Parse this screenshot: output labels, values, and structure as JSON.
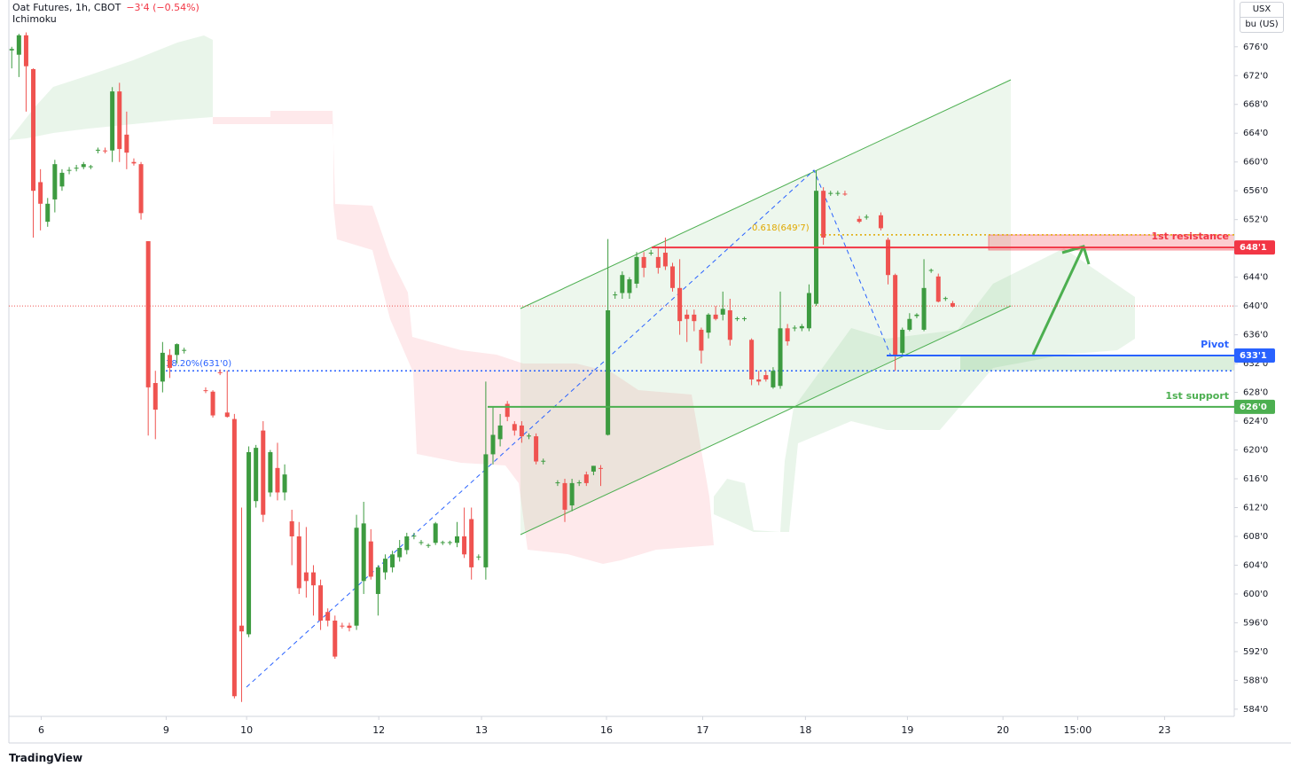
{
  "header": {
    "symbol": "Oat Futures, 1h, CBOT",
    "change": "−3'4 (−0.54%)",
    "indicator": "Ichimoku"
  },
  "currency": "USX",
  "unit": "bu (US)",
  "branding": "TradingView",
  "chart_data": {
    "type": "candlestick",
    "up_color": "#3d9b40",
    "down_color": "#ef5350",
    "xlim": [
      -0.4,
      170.2
    ],
    "ylim": [
      583,
      682.5
    ],
    "xticks": [
      {
        "value": 4.1,
        "label": "6"
      },
      {
        "value": 21.5,
        "label": "9"
      },
      {
        "value": 32.7,
        "label": "10"
      },
      {
        "value": 51.1,
        "label": "12"
      },
      {
        "value": 65.4,
        "label": "13"
      },
      {
        "value": 82.8,
        "label": "16"
      },
      {
        "value": 96.2,
        "label": "17"
      },
      {
        "value": 110.5,
        "label": "18"
      },
      {
        "value": 124.7,
        "label": "19"
      },
      {
        "value": 138,
        "label": "20"
      },
      {
        "value": 148.4,
        "label": "15:00"
      },
      {
        "value": 160.5,
        "label": "23"
      }
    ],
    "yticks": [
      {
        "value": 584,
        "label": "584'0"
      },
      {
        "value": 588,
        "label": "588'0"
      },
      {
        "value": 592,
        "label": "592'0"
      },
      {
        "value": 596,
        "label": "596'0"
      },
      {
        "value": 600,
        "label": "600'0"
      },
      {
        "value": 604,
        "label": "604'0"
      },
      {
        "value": 608,
        "label": "608'0"
      },
      {
        "value": 612,
        "label": "612'0"
      },
      {
        "value": 616,
        "label": "616'0"
      },
      {
        "value": 620,
        "label": "620'0"
      },
      {
        "value": 624,
        "label": "624'0"
      },
      {
        "value": 628,
        "label": "628'0"
      },
      {
        "value": 632,
        "label": "632'0"
      },
      {
        "value": 636,
        "label": "636'0"
      },
      {
        "value": 640,
        "label": "640'0"
      },
      {
        "value": 644,
        "label": "644'0"
      },
      {
        "value": 648,
        "label": "648'0"
      },
      {
        "value": 652,
        "label": "652'0"
      },
      {
        "value": 656,
        "label": "656'0"
      },
      {
        "value": 660,
        "label": "660'0"
      },
      {
        "value": 664,
        "label": "664'0"
      },
      {
        "value": 668,
        "label": "668'0"
      },
      {
        "value": 672,
        "label": "672'0"
      },
      {
        "value": 676,
        "label": "676'0"
      }
    ],
    "last_price": 640,
    "levels": [
      {
        "name": "1st resistance",
        "value": 648.125,
        "label": "648'1",
        "color": "#f23645"
      },
      {
        "name": "Pivot",
        "value": 633.125,
        "label": "633'1",
        "color": "#2962ff"
      },
      {
        "name": "1st support",
        "value": 626,
        "label": "626'0",
        "color": "#4caf50"
      }
    ],
    "fib_levels": [
      {
        "value": 631,
        "label": "38.20%(631'0)",
        "color": "#2962ff"
      },
      {
        "value": 649.875,
        "label": "0.618(649'7)",
        "color": "#e0a800"
      }
    ],
    "candles": [
      {
        "x": 0,
        "open": 675.5,
        "high": 676,
        "low": 673,
        "close": 675.7
      },
      {
        "x": 1,
        "open": 674.9,
        "high": 677.8,
        "low": 671.8,
        "close": 677.6
      },
      {
        "x": 2,
        "open": 677.6,
        "high": 678,
        "low": 667,
        "close": 673.3
      },
      {
        "x": 3,
        "open": 672.9,
        "high": 673,
        "low": 649.5,
        "close": 656
      },
      {
        "x": 4,
        "open": 657.2,
        "high": 659,
        "low": 650.5,
        "close": 654.2
      },
      {
        "x": 5,
        "open": 651.7,
        "high": 655,
        "low": 651,
        "close": 654.2
      },
      {
        "x": 6,
        "open": 654.8,
        "high": 660.3,
        "low": 653,
        "close": 659.7
      },
      {
        "x": 7,
        "open": 656.6,
        "high": 659,
        "low": 656,
        "close": 658.5
      },
      {
        "x": 8,
        "open": 658.8,
        "high": 659.3,
        "low": 658.3,
        "close": 658.9
      },
      {
        "x": 9,
        "open": 659.1,
        "high": 659.6,
        "low": 658.7,
        "close": 659.2
      },
      {
        "x": 10,
        "open": 659.3,
        "high": 660,
        "low": 659,
        "close": 659.7
      },
      {
        "x": 11,
        "open": 659.3,
        "high": 659.6,
        "low": 659,
        "close": 659.4
      },
      {
        "x": 12,
        "open": 661.6,
        "high": 662,
        "low": 661.2,
        "close": 661.7
      },
      {
        "x": 13,
        "open": 661.6,
        "high": 662,
        "low": 661.2,
        "close": 661.5
      },
      {
        "x": 14,
        "open": 661.6,
        "high": 670.4,
        "low": 660,
        "close": 669.8
      },
      {
        "x": 15,
        "open": 669.8,
        "high": 671,
        "low": 660,
        "close": 661.8
      },
      {
        "x": 16,
        "open": 663.8,
        "high": 667,
        "low": 659,
        "close": 661.3
      },
      {
        "x": 17,
        "open": 660,
        "high": 660.5,
        "low": 659.5,
        "close": 659.8
      },
      {
        "x": 18,
        "open": 659.7,
        "high": 660,
        "low": 652,
        "close": 652.9
      },
      {
        "x": 19,
        "open": 649,
        "high": 649,
        "low": 622,
        "close": 628.7
      },
      {
        "x": 20,
        "open": 629.3,
        "high": 631,
        "low": 621.5,
        "close": 625.6
      },
      {
        "x": 21,
        "open": 629.5,
        "high": 635,
        "low": 628,
        "close": 633.5
      },
      {
        "x": 22,
        "open": 633.2,
        "high": 634,
        "low": 630,
        "close": 631.4
      },
      {
        "x": 23,
        "open": 633.2,
        "high": 634.8,
        "low": 632,
        "close": 634.7
      },
      {
        "x": 24,
        "open": 633.8,
        "high": 634.2,
        "low": 633.4,
        "close": 633.9
      },
      {
        "x": 27,
        "open": 628.3,
        "high": 628.7,
        "low": 627.9,
        "close": 628.2
      },
      {
        "x": 28,
        "open": 628.1,
        "high": 628.3,
        "low": 624.5,
        "close": 624.8
      },
      {
        "x": 29,
        "open": 630.8,
        "high": 631.2,
        "low": 630.4,
        "close": 630.7
      },
      {
        "x": 30,
        "open": 625.2,
        "high": 631,
        "low": 624.5,
        "close": 624.6
      },
      {
        "x": 31,
        "open": 624.3,
        "high": 625,
        "low": 585.5,
        "close": 585.8
      },
      {
        "x": 32,
        "open": 595.6,
        "high": 612,
        "low": 585,
        "close": 594.8
      },
      {
        "x": 33,
        "open": 594.4,
        "high": 620.5,
        "low": 594,
        "close": 619.7
      },
      {
        "x": 34,
        "open": 612.9,
        "high": 620.7,
        "low": 612,
        "close": 620.3
      },
      {
        "x": 35,
        "open": 622.7,
        "high": 624,
        "low": 610,
        "close": 611
      },
      {
        "x": 36,
        "open": 614.1,
        "high": 620,
        "low": 613.5,
        "close": 619.7
      },
      {
        "x": 37,
        "open": 617.5,
        "high": 621,
        "low": 613,
        "close": 614.1
      },
      {
        "x": 38,
        "open": 614.1,
        "high": 618,
        "low": 613,
        "close": 616.6
      },
      {
        "x": 39,
        "open": 610.1,
        "high": 611.7,
        "low": 604,
        "close": 608
      },
      {
        "x": 40,
        "open": 608,
        "high": 610,
        "low": 600,
        "close": 600.8
      },
      {
        "x": 41,
        "open": 603,
        "high": 609.3,
        "low": 599.5,
        "close": 601.8
      },
      {
        "x": 42,
        "open": 603,
        "high": 604,
        "low": 597,
        "close": 601.2
      },
      {
        "x": 43,
        "open": 601.2,
        "high": 602,
        "low": 595,
        "close": 596.3
      },
      {
        "x": 44,
        "open": 597.5,
        "high": 598,
        "low": 595.5,
        "close": 596.3
      },
      {
        "x": 45,
        "open": 596.3,
        "high": 597,
        "low": 591,
        "close": 591.3
      },
      {
        "x": 46,
        "open": 595.6,
        "high": 596,
        "low": 595.2,
        "close": 595.5
      },
      {
        "x": 47,
        "open": 595.6,
        "high": 596,
        "low": 594.8,
        "close": 595.3
      },
      {
        "x": 48,
        "open": 595.6,
        "high": 611,
        "low": 595,
        "close": 609.2
      },
      {
        "x": 49,
        "open": 601.8,
        "high": 612.8,
        "low": 600,
        "close": 609.8
      },
      {
        "x": 50,
        "open": 607.3,
        "high": 609,
        "low": 602,
        "close": 602.4
      },
      {
        "x": 51,
        "open": 600,
        "high": 604,
        "low": 597,
        "close": 603.7
      },
      {
        "x": 52,
        "open": 603,
        "high": 605.5,
        "low": 602,
        "close": 604.9
      },
      {
        "x": 53,
        "open": 603.7,
        "high": 606,
        "low": 603,
        "close": 605.5
      },
      {
        "x": 54,
        "open": 605.1,
        "high": 607.5,
        "low": 604.5,
        "close": 606.4
      },
      {
        "x": 55,
        "open": 606.1,
        "high": 608.5,
        "low": 605.5,
        "close": 608
      },
      {
        "x": 56,
        "open": 608,
        "high": 608.5,
        "low": 607.6,
        "close": 608.1
      },
      {
        "x": 57,
        "open": 607.1,
        "high": 607.5,
        "low": 606.8,
        "close": 607.2
      },
      {
        "x": 58,
        "open": 606.7,
        "high": 607,
        "low": 606.4,
        "close": 606.8
      },
      {
        "x": 59,
        "open": 607.1,
        "high": 610,
        "low": 606.8,
        "close": 609.8
      },
      {
        "x": 60,
        "open": 607.1,
        "high": 607.4,
        "low": 606.8,
        "close": 607.2
      },
      {
        "x": 61,
        "open": 607.1,
        "high": 607.4,
        "low": 606.8,
        "close": 607.2
      },
      {
        "x": 62,
        "open": 607.1,
        "high": 610,
        "low": 606.5,
        "close": 608
      },
      {
        "x": 63,
        "open": 608,
        "high": 612,
        "low": 605,
        "close": 605.5
      },
      {
        "x": 64,
        "open": 610.4,
        "high": 612,
        "low": 602,
        "close": 603.7
      },
      {
        "x": 65,
        "open": 605.1,
        "high": 605.5,
        "low": 604.7,
        "close": 605.2
      },
      {
        "x": 66,
        "open": 603.7,
        "high": 629.5,
        "low": 602,
        "close": 619.4
      },
      {
        "x": 67,
        "open": 619.4,
        "high": 626,
        "low": 618,
        "close": 622.1
      },
      {
        "x": 68,
        "open": 621.5,
        "high": 625,
        "low": 620.5,
        "close": 623.4
      },
      {
        "x": 69,
        "open": 626.4,
        "high": 626.8,
        "low": 624,
        "close": 624.6
      },
      {
        "x": 70,
        "open": 623.6,
        "high": 624,
        "low": 622,
        "close": 622.7
      },
      {
        "x": 71,
        "open": 623.4,
        "high": 624,
        "low": 621,
        "close": 621.9
      },
      {
        "x": 72,
        "open": 621.9,
        "high": 622.3,
        "low": 621.5,
        "close": 622
      },
      {
        "x": 73,
        "open": 621.9,
        "high": 622.3,
        "low": 618,
        "close": 618.4
      },
      {
        "x": 74,
        "open": 618.4,
        "high": 618.8,
        "low": 618,
        "close": 618.5
      },
      {
        "x": 76,
        "open": 615.4,
        "high": 615.8,
        "low": 615,
        "close": 615.5
      },
      {
        "x": 77,
        "open": 615.4,
        "high": 616,
        "low": 610,
        "close": 611.7
      },
      {
        "x": 78,
        "open": 612.3,
        "high": 616,
        "low": 611.5,
        "close": 615.4
      },
      {
        "x": 79,
        "open": 615.4,
        "high": 615.8,
        "low": 615,
        "close": 615.5
      },
      {
        "x": 80,
        "open": 616.6,
        "high": 617,
        "low": 615,
        "close": 615.4
      },
      {
        "x": 81,
        "open": 617,
        "high": 617.8,
        "low": 616.5,
        "close": 617.8
      },
      {
        "x": 82,
        "open": 617.5,
        "high": 617.9,
        "low": 615,
        "close": 617.4
      },
      {
        "x": 83,
        "open": 622.1,
        "high": 649.3,
        "low": 622,
        "close": 639.4
      },
      {
        "x": 84,
        "open": 641.5,
        "high": 642,
        "low": 641,
        "close": 641.6
      },
      {
        "x": 85,
        "open": 641.8,
        "high": 644.8,
        "low": 641,
        "close": 644.3
      },
      {
        "x": 86,
        "open": 641.8,
        "high": 644,
        "low": 641,
        "close": 643.7
      },
      {
        "x": 87,
        "open": 643.1,
        "high": 647.5,
        "low": 642.5,
        "close": 646.8
      },
      {
        "x": 88,
        "open": 646.8,
        "high": 647.5,
        "low": 644,
        "close": 645.3
      },
      {
        "x": 89,
        "open": 647.3,
        "high": 647.8,
        "low": 647,
        "close": 647.4
      },
      {
        "x": 90,
        "open": 646.8,
        "high": 648,
        "low": 644.5,
        "close": 645.3
      },
      {
        "x": 91,
        "open": 647.4,
        "high": 649.5,
        "low": 645,
        "close": 645.5
      },
      {
        "x": 92,
        "open": 645.5,
        "high": 646,
        "low": 642,
        "close": 642.5
      },
      {
        "x": 93,
        "open": 642.5,
        "high": 646.5,
        "low": 636,
        "close": 637.9
      },
      {
        "x": 94,
        "open": 638.8,
        "high": 639.5,
        "low": 635,
        "close": 638.2
      },
      {
        "x": 95,
        "open": 638.8,
        "high": 639.5,
        "low": 636.5,
        "close": 637.9
      },
      {
        "x": 96,
        "open": 636.7,
        "high": 637,
        "low": 632,
        "close": 633.8
      },
      {
        "x": 97,
        "open": 636.3,
        "high": 639,
        "low": 635.5,
        "close": 638.8
      },
      {
        "x": 98,
        "open": 638.8,
        "high": 640,
        "low": 638,
        "close": 638.2
      },
      {
        "x": 99,
        "open": 638.8,
        "high": 642,
        "low": 638,
        "close": 639.6
      },
      {
        "x": 100,
        "open": 639.4,
        "high": 641,
        "low": 634.5,
        "close": 635.3
      },
      {
        "x": 101,
        "open": 638.2,
        "high": 638.5,
        "low": 637.9,
        "close": 638.3
      },
      {
        "x": 102,
        "open": 638.2,
        "high": 638.5,
        "low": 637.9,
        "close": 638.3
      },
      {
        "x": 103,
        "open": 635.3,
        "high": 635.5,
        "low": 629,
        "close": 629.8
      },
      {
        "x": 104,
        "open": 629.8,
        "high": 631,
        "low": 629,
        "close": 629.5
      },
      {
        "x": 105,
        "open": 630.4,
        "high": 631,
        "low": 629.5,
        "close": 629.8
      },
      {
        "x": 106,
        "open": 628.7,
        "high": 631.5,
        "low": 628.5,
        "close": 631
      },
      {
        "x": 107,
        "open": 628.9,
        "high": 642,
        "low": 628.5,
        "close": 636.9
      },
      {
        "x": 108,
        "open": 636.9,
        "high": 637.5,
        "low": 634.5,
        "close": 635.1
      },
      {
        "x": 109,
        "open": 636.9,
        "high": 637.3,
        "low": 636.5,
        "close": 637
      },
      {
        "x": 110,
        "open": 636.9,
        "high": 637.5,
        "low": 636.5,
        "close": 637.2
      },
      {
        "x": 111,
        "open": 636.9,
        "high": 643,
        "low": 636.5,
        "close": 641.8
      },
      {
        "x": 112,
        "open": 640.3,
        "high": 658.8,
        "low": 640,
        "close": 656
      },
      {
        "x": 113,
        "open": 656,
        "high": 656.5,
        "low": 648.5,
        "close": 649.5
      },
      {
        "x": 114,
        "open": 655.6,
        "high": 656,
        "low": 655.3,
        "close": 655.7
      },
      {
        "x": 115,
        "open": 655.6,
        "high": 656,
        "low": 655.3,
        "close": 655.7
      },
      {
        "x": 116,
        "open": 655.6,
        "high": 656,
        "low": 655.3,
        "close": 655.5
      },
      {
        "x": 118,
        "open": 652.1,
        "high": 652.5,
        "low": 651.5,
        "close": 651.7
      },
      {
        "x": 119,
        "open": 652.3,
        "high": 652.7,
        "low": 652,
        "close": 652.4
      },
      {
        "x": 121,
        "open": 652.6,
        "high": 653,
        "low": 650.5,
        "close": 650.8
      },
      {
        "x": 122,
        "open": 649.2,
        "high": 649.5,
        "low": 643,
        "close": 644.3
      },
      {
        "x": 123,
        "open": 644.3,
        "high": 644.5,
        "low": 631,
        "close": 633.2
      },
      {
        "x": 124,
        "open": 633.5,
        "high": 637,
        "low": 633,
        "close": 636.7
      },
      {
        "x": 125,
        "open": 636.7,
        "high": 639,
        "low": 636.5,
        "close": 638.2
      },
      {
        "x": 126,
        "open": 638.6,
        "high": 639,
        "low": 638.3,
        "close": 638.8
      },
      {
        "x": 127,
        "open": 636.7,
        "high": 646.5,
        "low": 636.5,
        "close": 642.5
      },
      {
        "x": 128,
        "open": 644.9,
        "high": 645.2,
        "low": 644.6,
        "close": 645
      },
      {
        "x": 129,
        "open": 644.1,
        "high": 644.5,
        "low": 640.5,
        "close": 640.6
      },
      {
        "x": 130,
        "open": 641,
        "high": 641.3,
        "low": 640.7,
        "close": 641.1
      },
      {
        "x": 131,
        "open": 640.4,
        "high": 640.7,
        "low": 639.8,
        "close": 639.9
      }
    ]
  }
}
